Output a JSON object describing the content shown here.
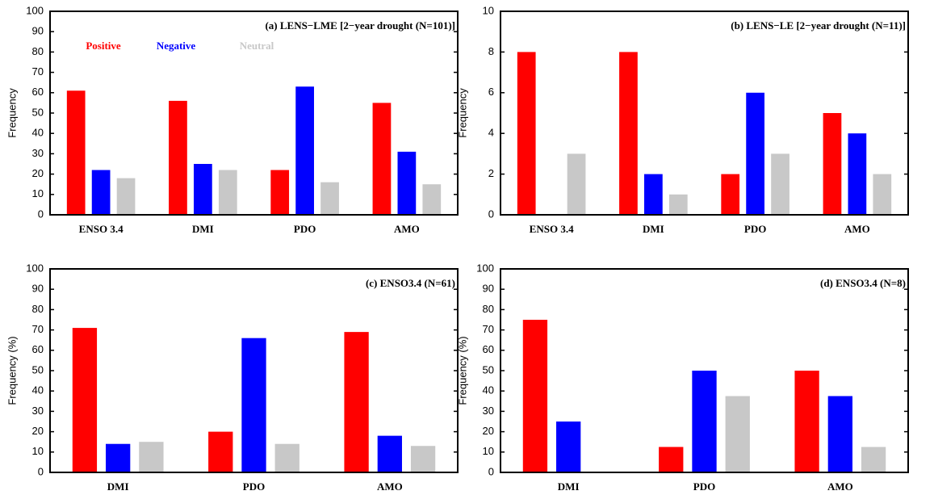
{
  "chart_data": [
    {
      "type": "bar",
      "title": "(a) LENS−LME [2−year drought (N=101)]",
      "ylabel": "Frequency",
      "categories": [
        "ENSO 3.4",
        "DMI",
        "PDO",
        "AMO"
      ],
      "series": [
        {
          "name": "Positive",
          "color": "#ff0000",
          "values": [
            61,
            56,
            22,
            55
          ]
        },
        {
          "name": "Negative",
          "color": "#0000ff",
          "values": [
            22,
            25,
            63,
            31
          ]
        },
        {
          "name": "Neutral",
          "color": "#c8c8c8",
          "values": [
            18,
            22,
            16,
            15
          ]
        }
      ],
      "ylim": [
        0,
        100
      ],
      "yticks": [
        0,
        10,
        20,
        30,
        40,
        50,
        60,
        70,
        80,
        90,
        100
      ]
    },
    {
      "type": "bar",
      "title": "(b) LENS−LE [2−year drought (N=11)]",
      "ylabel": "Frequency",
      "categories": [
        "ENSO 3.4",
        "DMI",
        "PDO",
        "AMO"
      ],
      "series": [
        {
          "color": "#ff0000",
          "values": [
            8,
            8,
            2,
            5
          ]
        },
        {
          "color": "#0000ff",
          "values": [
            0,
            2,
            6,
            4
          ]
        },
        {
          "color": "#c8c8c8",
          "values": [
            3,
            1,
            3,
            2
          ]
        }
      ],
      "ylim": [
        0,
        10
      ],
      "yticks": [
        0,
        2,
        4,
        6,
        8,
        10
      ]
    },
    {
      "type": "bar",
      "title": "(c) ENSO3.4 (N=61)",
      "ylabel": "Frequency (%)",
      "categories": [
        "DMI",
        "PDO",
        "AMO"
      ],
      "series": [
        {
          "color": "#ff0000",
          "values": [
            71,
            20,
            69
          ]
        },
        {
          "color": "#0000ff",
          "values": [
            14,
            66,
            18
          ]
        },
        {
          "color": "#c8c8c8",
          "values": [
            15,
            14,
            13
          ]
        }
      ],
      "ylim": [
        0,
        100
      ],
      "yticks": [
        0,
        10,
        20,
        30,
        40,
        50,
        60,
        70,
        80,
        90,
        100
      ]
    },
    {
      "type": "bar",
      "title": "(d) ENSO3.4 (N=8)",
      "ylabel": "Frequency (%)",
      "categories": [
        "DMI",
        "PDO",
        "AMO"
      ],
      "series": [
        {
          "color": "#ff0000",
          "values": [
            75,
            12.5,
            50
          ]
        },
        {
          "color": "#0000ff",
          "values": [
            25,
            50,
            37.5
          ]
        },
        {
          "color": "#c8c8c8",
          "values": [
            0,
            37.5,
            12.5
          ]
        }
      ],
      "ylim": [
        0,
        100
      ],
      "yticks": [
        0,
        10,
        20,
        30,
        40,
        50,
        60,
        70,
        80,
        90,
        100
      ]
    }
  ]
}
